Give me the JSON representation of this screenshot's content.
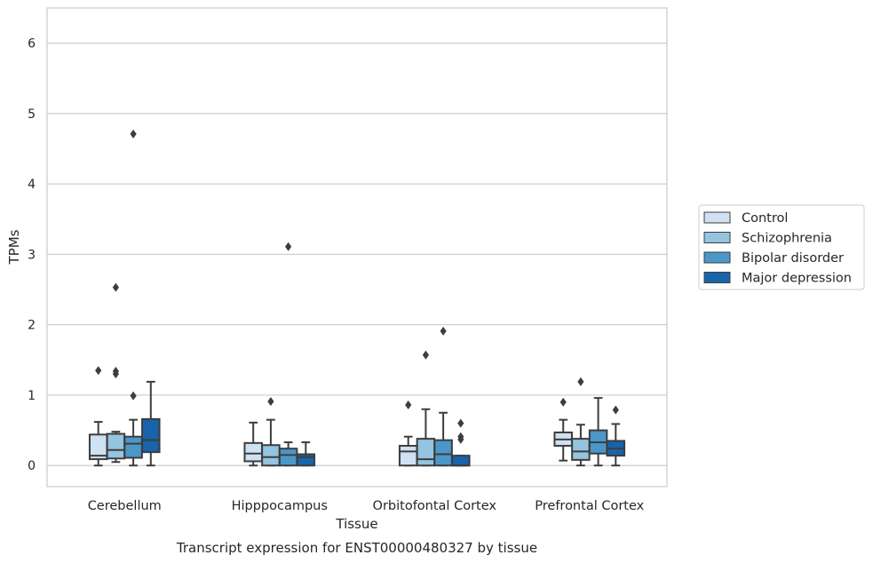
{
  "chart_data": {
    "type": "box",
    "title": "",
    "caption": "Transcript expression for ENST00000480327 by tissue",
    "xlabel": "Tissue",
    "ylabel": "TPMs",
    "ylim": [
      -0.3,
      6.5
    ],
    "yticks": [
      0,
      1,
      2,
      3,
      4,
      5,
      6
    ],
    "grid": "horizontal",
    "legend_position": "right",
    "categories": [
      "Cerebellum",
      "Hipppocampus",
      "Orbitofontal Cortex",
      "Prefrontal Cortex"
    ],
    "series": [
      {
        "name": "Control",
        "color": "#d0e1f2",
        "boxes": [
          {
            "low": 0.0,
            "q1": 0.09,
            "median": 0.14,
            "q3": 0.44,
            "high": 0.62,
            "outliers": [
              1.35
            ]
          },
          {
            "low": 0.0,
            "q1": 0.06,
            "median": 0.17,
            "q3": 0.32,
            "high": 0.61,
            "outliers": []
          },
          {
            "low": 0.0,
            "q1": 0.0,
            "median": 0.2,
            "q3": 0.28,
            "high": 0.41,
            "outliers": [
              0.86
            ]
          },
          {
            "low": 0.07,
            "q1": 0.28,
            "median": 0.37,
            "q3": 0.47,
            "high": 0.65,
            "outliers": [
              0.9
            ]
          }
        ]
      },
      {
        "name": "Schizophrenia",
        "color": "#94c4df",
        "boxes": [
          {
            "low": 0.05,
            "q1": 0.1,
            "median": 0.22,
            "q3": 0.45,
            "high": 0.48,
            "outliers": [
              2.53,
              1.34,
              1.3
            ]
          },
          {
            "low": 0.0,
            "q1": 0.0,
            "median": 0.12,
            "q3": 0.29,
            "high": 0.65,
            "outliers": [
              0.91
            ]
          },
          {
            "low": 0.0,
            "q1": 0.0,
            "median": 0.09,
            "q3": 0.38,
            "high": 0.8,
            "outliers": [
              1.57
            ]
          },
          {
            "low": 0.0,
            "q1": 0.08,
            "median": 0.2,
            "q3": 0.38,
            "high": 0.58,
            "outliers": [
              1.19
            ]
          }
        ]
      },
      {
        "name": "Bipolar disorder",
        "color": "#4a98c9",
        "boxes": [
          {
            "low": 0.0,
            "q1": 0.11,
            "median": 0.31,
            "q3": 0.41,
            "high": 0.65,
            "outliers": [
              4.71,
              0.99
            ]
          },
          {
            "low": 0.0,
            "q1": 0.0,
            "median": 0.15,
            "q3": 0.24,
            "high": 0.33,
            "outliers": [
              3.11
            ]
          },
          {
            "low": 0.0,
            "q1": 0.0,
            "median": 0.16,
            "q3": 0.36,
            "high": 0.75,
            "outliers": [
              1.91
            ]
          },
          {
            "low": 0.0,
            "q1": 0.17,
            "median": 0.33,
            "q3": 0.5,
            "high": 0.96,
            "outliers": []
          }
        ]
      },
      {
        "name": "Major depression",
        "color": "#1764ab",
        "boxes": [
          {
            "low": 0.0,
            "q1": 0.19,
            "median": 0.36,
            "q3": 0.66,
            "high": 1.19,
            "outliers": []
          },
          {
            "low": 0.0,
            "q1": 0.0,
            "median": 0.12,
            "q3": 0.16,
            "high": 0.33,
            "outliers": []
          },
          {
            "low": 0.0,
            "q1": 0.0,
            "median": 0.0,
            "q3": 0.14,
            "high": 0.14,
            "outliers": [
              0.6,
              0.41,
              0.37
            ]
          },
          {
            "low": 0.0,
            "q1": 0.14,
            "median": 0.24,
            "q3": 0.35,
            "high": 0.59,
            "outliers": [
              0.79
            ]
          }
        ]
      }
    ]
  }
}
